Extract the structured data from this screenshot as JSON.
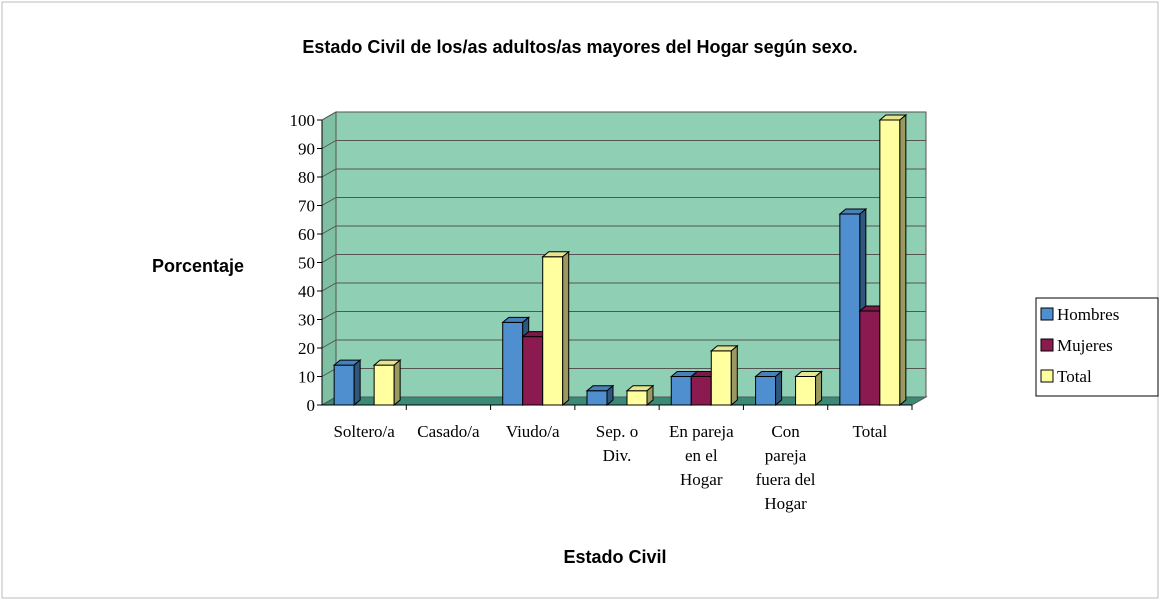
{
  "chart_data": {
    "type": "bar3d",
    "title": "Estado Civil de los/as adultos/as mayores del Hogar según sexo.",
    "y_label": "Porcentaje",
    "x_label": "Estado Civil",
    "categories": [
      "Soltero/a",
      "Casado/a",
      "Viudo/a",
      "Sep. o Div.",
      "En pareja en el Hogar",
      "Con pareja fuera del Hogar",
      "Total"
    ],
    "series": [
      {
        "name": "Hombres",
        "color": "#4f8fd0",
        "values": [
          14,
          0,
          29,
          5,
          10,
          10,
          67
        ]
      },
      {
        "name": "Mujeres",
        "color": "#8b1a50",
        "values": [
          0,
          0,
          24,
          0,
          10,
          0,
          33
        ]
      },
      {
        "name": "Total",
        "color": "#ffffa0",
        "values": [
          14,
          0,
          52,
          5,
          19,
          10,
          100
        ]
      }
    ],
    "ylim": [
      0,
      100
    ],
    "yticks": [
      0,
      10,
      20,
      30,
      40,
      50,
      60,
      70,
      80,
      90,
      100
    ],
    "grid": true,
    "legend": "right"
  }
}
